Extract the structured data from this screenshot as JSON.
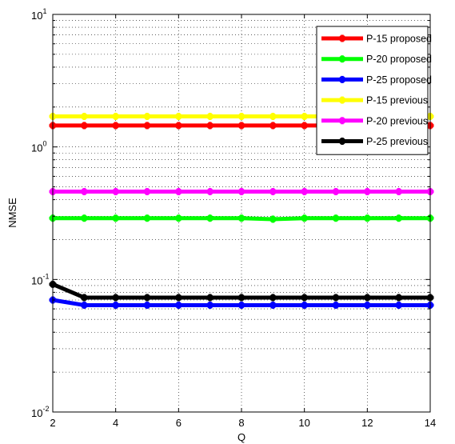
{
  "chart_data": {
    "type": "line",
    "title": "",
    "xlabel": "Q",
    "ylabel": "NMSE",
    "xlim": [
      2,
      14
    ],
    "ylim": [
      0.01,
      10
    ],
    "yscale": "log",
    "grid": true,
    "grid_style": "dotted",
    "legend_position": "top-right",
    "x": [
      2,
      3,
      4,
      5,
      6,
      7,
      8,
      9,
      10,
      11,
      12,
      13,
      14
    ],
    "x_ticks": [
      2,
      4,
      6,
      8,
      10,
      12,
      14
    ],
    "y_ticks": [
      {
        "base": "10",
        "exp": "-2",
        "value": 0.01
      },
      {
        "base": "10",
        "exp": "-1",
        "value": 0.1
      },
      {
        "base": "10",
        "exp": "0",
        "value": 1
      },
      {
        "base": "10",
        "exp": "1",
        "value": 10
      }
    ],
    "series": [
      {
        "name": "P-15 proposed",
        "color": "#ff0000",
        "values": [
          1.45,
          1.45,
          1.45,
          1.45,
          1.45,
          1.45,
          1.45,
          1.45,
          1.45,
          1.45,
          1.45,
          1.45,
          1.45
        ]
      },
      {
        "name": "P-20 proposed",
        "color": "#00ff00",
        "values": [
          0.29,
          0.29,
          0.29,
          0.29,
          0.29,
          0.29,
          0.29,
          0.285,
          0.29,
          0.29,
          0.29,
          0.29,
          0.29
        ]
      },
      {
        "name": "P-25 proposed",
        "color": "#0000ff",
        "values": [
          0.07,
          0.064,
          0.064,
          0.064,
          0.064,
          0.064,
          0.064,
          0.064,
          0.064,
          0.064,
          0.064,
          0.064,
          0.064
        ]
      },
      {
        "name": "P-15 previous",
        "color": "#ffff00",
        "values": [
          1.7,
          1.7,
          1.7,
          1.7,
          1.7,
          1.7,
          1.7,
          1.7,
          1.7,
          1.7,
          1.7,
          1.7,
          1.7
        ]
      },
      {
        "name": "P-20 previous",
        "color": "#ff00ff",
        "values": [
          0.46,
          0.46,
          0.46,
          0.46,
          0.46,
          0.46,
          0.46,
          0.46,
          0.46,
          0.46,
          0.46,
          0.46,
          0.46
        ]
      },
      {
        "name": "P-25 previous",
        "color": "#000000",
        "values": [
          0.092,
          0.073,
          0.073,
          0.073,
          0.073,
          0.073,
          0.073,
          0.073,
          0.073,
          0.073,
          0.073,
          0.073,
          0.073
        ]
      }
    ]
  }
}
